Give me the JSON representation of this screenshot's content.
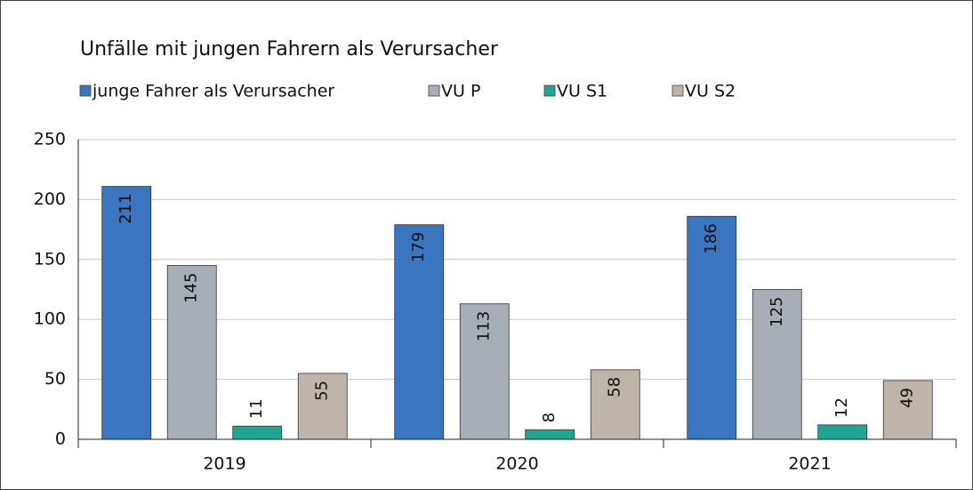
{
  "chart_data": {
    "type": "bar",
    "title": "Unfälle mit jungen Fahrern als Verursacher",
    "categories": [
      "2019",
      "2020",
      "2021"
    ],
    "series": [
      {
        "name": "junge Fahrer als Verursacher",
        "color": "#3a75bf",
        "values": [
          211,
          179,
          186
        ]
      },
      {
        "name": "VU P",
        "color": "#a8aeb7",
        "values": [
          145,
          113,
          125
        ]
      },
      {
        "name": "VU S1",
        "color": "#1fa591",
        "values": [
          11,
          8,
          12
        ]
      },
      {
        "name": "VU S2",
        "color": "#bfb4aa",
        "values": [
          55,
          58,
          49
        ]
      }
    ],
    "ylim": [
      0,
      250
    ],
    "yticks": [
      0,
      50,
      100,
      150,
      200,
      250
    ],
    "grid": true,
    "legend": "top"
  }
}
